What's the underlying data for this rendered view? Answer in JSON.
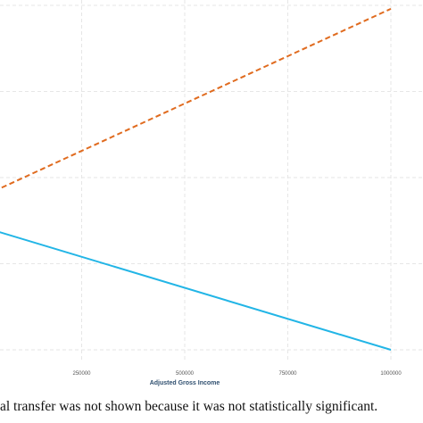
{
  "chart_data": {
    "type": "line",
    "xlabel": "Adjusted Gross Income",
    "ylabel": "",
    "title": "",
    "xlim": [
      0,
      1000000
    ],
    "ylim": [
      0,
      10
    ],
    "grid": true,
    "x_ticks": [
      250000,
      500000,
      750000,
      1000000
    ],
    "x_tick_labels": [
      "250000",
      "500000",
      "750000",
      "1000000"
    ],
    "y_gridlines": [
      0,
      2.5,
      5,
      7.5,
      10
    ],
    "series": [
      {
        "style": "dashed",
        "color": "#e06b1f",
        "x": [
          0,
          1000000
        ],
        "y": [
          4.4,
          9.9
        ]
      },
      {
        "style": "solid",
        "color": "#22b5e6",
        "x": [
          0,
          1000000
        ],
        "y": [
          3.6,
          0.0
        ]
      }
    ]
  },
  "caption": "al transfer was not shown because it was not statistically significant."
}
